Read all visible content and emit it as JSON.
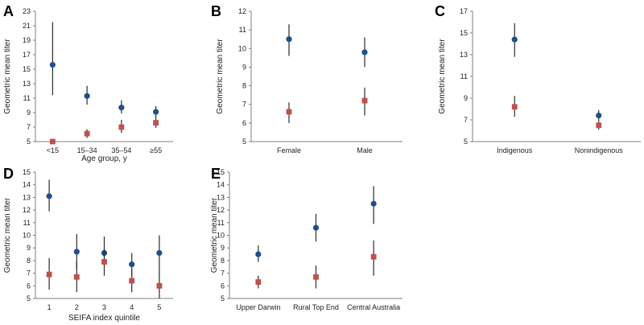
{
  "colors": {
    "series_1": "#1f4e8c",
    "series_2": "#c0504d",
    "axis": "#7f7f7f",
    "error_bar": "#2b2b2b"
  },
  "chart_data": [
    {
      "panel": "A",
      "type": "scatter",
      "xlabel": "Age group, y",
      "ylabel": "Geometric mean titer",
      "categories": [
        "<15",
        "15–34",
        "35–54",
        "≥55"
      ],
      "ylim": [
        5,
        23
      ],
      "yticks": [
        5,
        7,
        9,
        11,
        13,
        15,
        17,
        19,
        21,
        23
      ],
      "series": [
        {
          "marker": "circle",
          "color": "#1f4e8c",
          "values": [
            15.6,
            11.3,
            9.7,
            9.1
          ],
          "lower": [
            11.4,
            10.1,
            8.9,
            8.3
          ],
          "upper": [
            21.5,
            12.7,
            10.7,
            9.9
          ]
        },
        {
          "marker": "square",
          "color": "#c0504d",
          "values": [
            5.0,
            6.1,
            7.0,
            7.6
          ],
          "lower": [
            5.0,
            5.5,
            6.2,
            6.9
          ],
          "upper": [
            5.0,
            6.7,
            8.0,
            8.4
          ]
        }
      ]
    },
    {
      "panel": "B",
      "type": "scatter",
      "xlabel": "",
      "ylabel": "Geometric mean titer",
      "categories": [
        "Female",
        "Male"
      ],
      "ylim": [
        5,
        12
      ],
      "yticks": [
        5,
        6,
        7,
        8,
        9,
        10,
        11,
        12
      ],
      "series": [
        {
          "marker": "circle",
          "color": "#1f4e8c",
          "values": [
            10.5,
            9.8
          ],
          "lower": [
            9.6,
            9.0
          ],
          "upper": [
            11.3,
            10.6
          ]
        },
        {
          "marker": "square",
          "color": "#c0504d",
          "values": [
            6.6,
            7.2
          ],
          "lower": [
            6.0,
            6.4
          ],
          "upper": [
            7.1,
            7.9
          ]
        }
      ]
    },
    {
      "panel": "C",
      "type": "scatter",
      "xlabel": "",
      "ylabel": "Geometric mean titer",
      "categories": [
        "Indigenous",
        "Nonindigenous"
      ],
      "ylim": [
        5,
        17
      ],
      "yticks": [
        5,
        7,
        9,
        11,
        13,
        15,
        17
      ],
      "series": [
        {
          "marker": "circle",
          "color": "#1f4e8c",
          "values": [
            14.4,
            7.4
          ],
          "lower": [
            12.8,
            6.9
          ],
          "upper": [
            15.9,
            7.9
          ]
        },
        {
          "marker": "square",
          "color": "#c0504d",
          "values": [
            8.2,
            6.5
          ],
          "lower": [
            7.3,
            6.1
          ],
          "upper": [
            9.2,
            6.9
          ]
        }
      ]
    },
    {
      "panel": "D",
      "type": "scatter",
      "xlabel": "SEIFA index quintile",
      "ylabel": "Geometric mean titer",
      "categories": [
        "1",
        "2",
        "3",
        "4",
        "5"
      ],
      "ylim": [
        5,
        15
      ],
      "yticks": [
        5,
        6,
        7,
        8,
        9,
        10,
        11,
        12,
        13,
        14,
        15
      ],
      "series": [
        {
          "marker": "circle",
          "color": "#1f4e8c",
          "values": [
            13.1,
            8.7,
            8.6,
            7.7,
            8.6
          ],
          "lower": [
            11.9,
            7.3,
            7.5,
            6.8,
            6.9
          ],
          "upper": [
            14.4,
            10.1,
            9.9,
            8.6,
            10.0
          ]
        },
        {
          "marker": "square",
          "color": "#c0504d",
          "values": [
            6.9,
            6.7,
            7.9,
            6.4,
            6.0
          ],
          "lower": [
            5.7,
            5.5,
            6.8,
            5.5,
            5.0
          ],
          "upper": [
            8.2,
            7.9,
            9.0,
            7.3,
            7.0
          ]
        }
      ]
    },
    {
      "panel": "E",
      "type": "scatter",
      "xlabel": "",
      "ylabel": "Geometric mean titer",
      "categories": [
        "Upper Darwin",
        "Rural Top End",
        "Central Australia"
      ],
      "ylim": [
        5,
        15
      ],
      "yticks": [
        5,
        6,
        7,
        8,
        9,
        10,
        11,
        12,
        13,
        14,
        15
      ],
      "series": [
        {
          "marker": "circle",
          "color": "#1f4e8c",
          "values": [
            8.5,
            10.6,
            12.5
          ],
          "lower": [
            7.9,
            9.5,
            10.9
          ],
          "upper": [
            9.2,
            11.7,
            13.9
          ]
        },
        {
          "marker": "square",
          "color": "#c0504d",
          "values": [
            6.3,
            6.7,
            8.3
          ],
          "lower": [
            5.8,
            5.8,
            6.8
          ],
          "upper": [
            6.8,
            7.6,
            9.6
          ]
        }
      ]
    }
  ]
}
